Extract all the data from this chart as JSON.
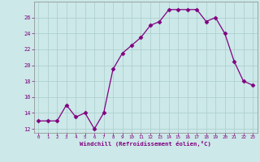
{
  "x": [
    0,
    1,
    2,
    3,
    4,
    5,
    6,
    7,
    8,
    9,
    10,
    11,
    12,
    13,
    14,
    15,
    16,
    17,
    18,
    19,
    20,
    21,
    22,
    23
  ],
  "y": [
    13,
    13,
    13,
    15,
    13.5,
    14,
    12,
    14,
    19.5,
    21.5,
    22.5,
    23.5,
    25,
    25.5,
    27,
    27,
    27,
    27,
    25.5,
    26,
    24,
    20.5,
    18,
    17.5
  ],
  "line_color": "#800080",
  "marker": "D",
  "marker_size": 2.5,
  "bg_color": "#cce8e8",
  "grid_color": "#aacccc",
  "xlabel": "Windchill (Refroidissement éolien,°C)",
  "ylim": [
    11.5,
    28
  ],
  "xlim": [
    -0.5,
    23.5
  ],
  "yticks": [
    12,
    14,
    16,
    18,
    20,
    22,
    24,
    26
  ],
  "xticks": [
    0,
    1,
    2,
    3,
    4,
    5,
    6,
    7,
    8,
    9,
    10,
    11,
    12,
    13,
    14,
    15,
    16,
    17,
    18,
    19,
    20,
    21,
    22,
    23
  ]
}
